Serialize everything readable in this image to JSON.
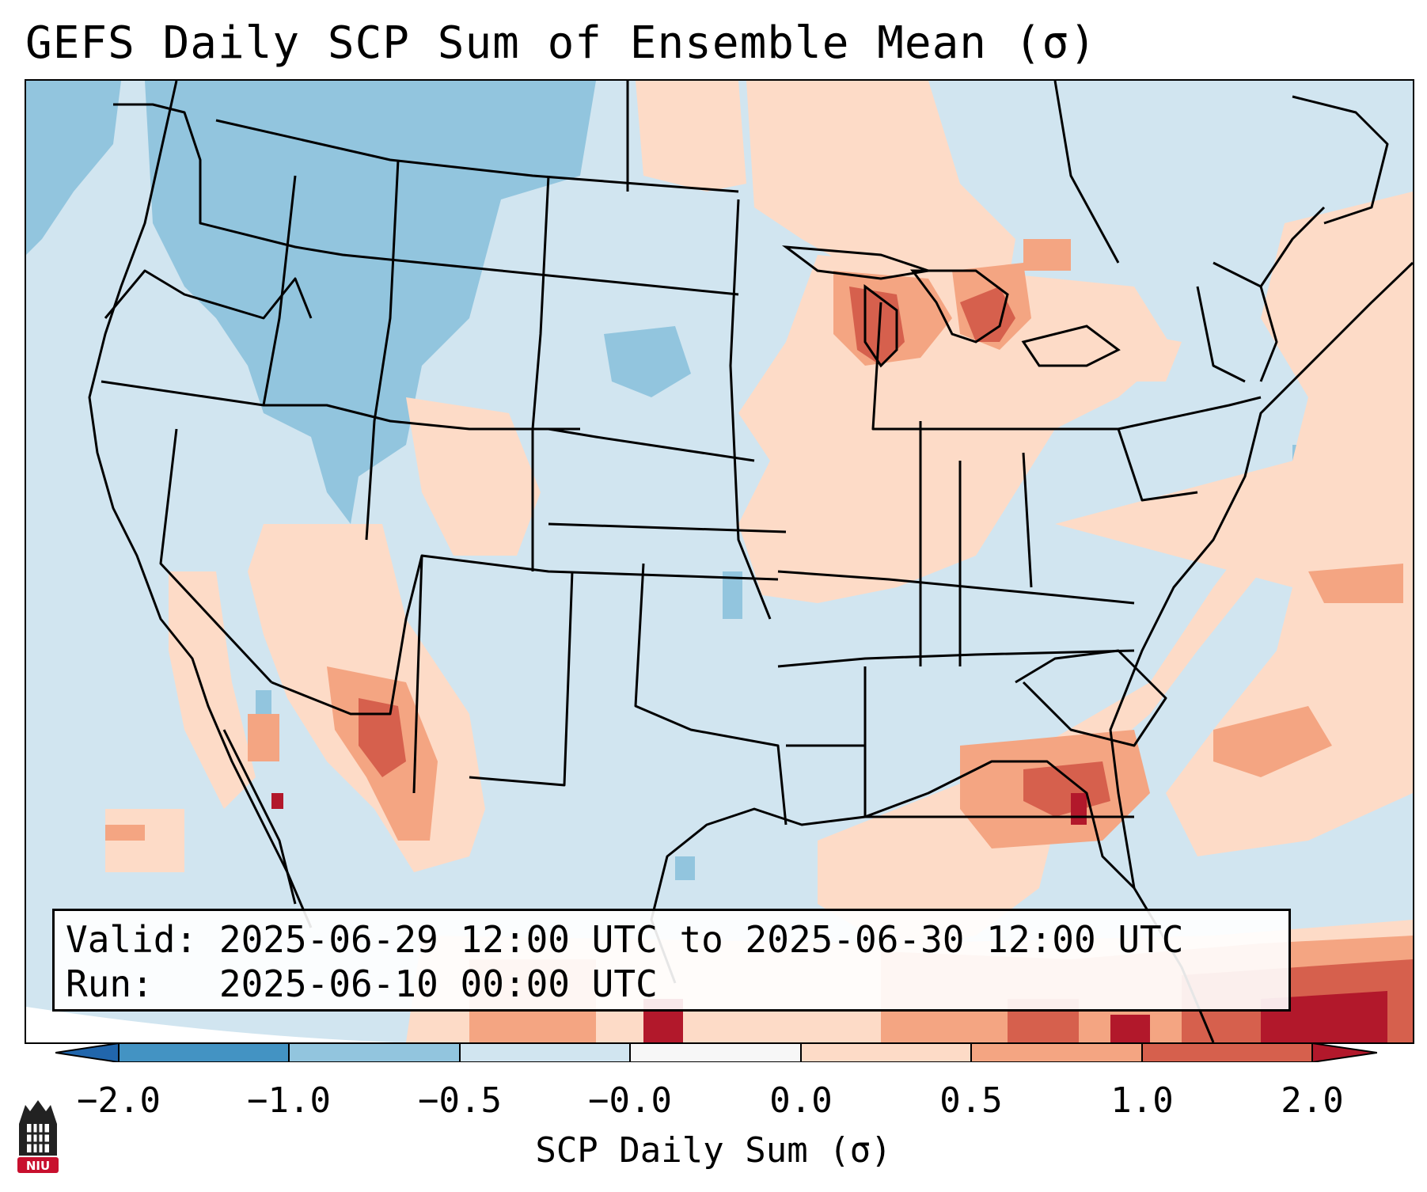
{
  "title": "GEFS Daily SCP Sum of Ensemble Mean (σ)",
  "info": {
    "valid_label": "Valid:",
    "valid_value": "2025-06-29 12:00 UTC to 2025-06-30 12:00 UTC",
    "run_label": "Run:",
    "run_value": "2025-06-10 00:00 UTC"
  },
  "colorbar": {
    "label": "SCP Daily Sum (σ)",
    "ticks": [
      "−2.0",
      "−1.0",
      "−0.5",
      "−0.0",
      "0.0",
      "0.5",
      "1.0",
      "2.0"
    ],
    "bins": [
      {
        "range": "< -2.0",
        "color": "#2166ac"
      },
      {
        "range": "-2.0 to -1.0",
        "color": "#4393c3"
      },
      {
        "range": "-1.0 to -0.5",
        "color": "#92c5de"
      },
      {
        "range": "-0.5 to -0.0",
        "color": "#d1e5f0"
      },
      {
        "range": "-0.0 to 0.0",
        "color": "#f7f7f7"
      },
      {
        "range": "0.0 to 0.5",
        "color": "#fddbc7"
      },
      {
        "range": "0.5 to 1.0",
        "color": "#f4a582"
      },
      {
        "range": "1.0 to 2.0",
        "color": "#d6604d"
      },
      {
        "range": "> 2.0",
        "color": "#b2182b"
      }
    ]
  },
  "logo": {
    "text": "NIU",
    "color": "#c8102e"
  }
}
